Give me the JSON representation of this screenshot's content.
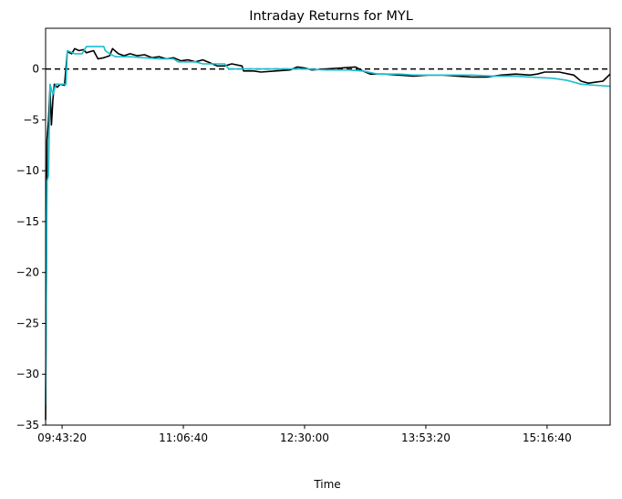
{
  "chart_data": {
    "type": "line",
    "title": "Intraday Returns for MYL",
    "xlabel": "Time",
    "ylabel": "",
    "x_time_range": [
      "09:32:00",
      "16:00:00"
    ],
    "ylim": [
      -35,
      4
    ],
    "x_ticks": [
      {
        "time": "09:43:20",
        "label": "09:43:20"
      },
      {
        "time": "11:06:40",
        "label": "11:06:40"
      },
      {
        "time": "12:30:00",
        "label": "12:30:00"
      },
      {
        "time": "13:53:20",
        "label": "13:53:20"
      },
      {
        "time": "15:16:40",
        "label": "15:16:40"
      }
    ],
    "y_ticks": [
      {
        "value": 0,
        "label": "0"
      },
      {
        "value": -5,
        "label": "−5"
      },
      {
        "value": -10,
        "label": "−10"
      },
      {
        "value": -15,
        "label": "−15"
      },
      {
        "value": -20,
        "label": "−20"
      },
      {
        "value": -25,
        "label": "−25"
      },
      {
        "value": -30,
        "label": "−30"
      },
      {
        "value": -35,
        "label": "−35"
      }
    ],
    "grid": false,
    "reference_line": {
      "value": 0,
      "style": "dashed",
      "color": "#000000"
    },
    "series": [
      {
        "color": "#000000",
        "points": [
          [
            "09:32:00",
            -34.5
          ],
          [
            "09:33:00",
            -7.0
          ],
          [
            "09:34:00",
            -5.0
          ],
          [
            "09:35:00",
            -2.0
          ],
          [
            "09:36:00",
            -5.5
          ],
          [
            "09:37:00",
            -3.0
          ],
          [
            "09:38:00",
            -1.5
          ],
          [
            "09:40:00",
            -1.8
          ],
          [
            "09:42:00",
            -1.5
          ],
          [
            "09:45:00",
            -1.6
          ],
          [
            "09:47:00",
            1.7
          ],
          [
            "09:50:00",
            1.5
          ],
          [
            "09:52:00",
            2.0
          ],
          [
            "09:55:00",
            1.8
          ],
          [
            "09:58:00",
            1.9
          ],
          [
            "10:00:00",
            1.6
          ],
          [
            "10:05:00",
            1.8
          ],
          [
            "10:08:00",
            1.0
          ],
          [
            "10:12:00",
            1.1
          ],
          [
            "10:16:00",
            1.3
          ],
          [
            "10:18:00",
            2.0
          ],
          [
            "10:22:00",
            1.5
          ],
          [
            "10:26:00",
            1.3
          ],
          [
            "10:30:00",
            1.5
          ],
          [
            "10:35:00",
            1.3
          ],
          [
            "10:40:00",
            1.4
          ],
          [
            "10:45:00",
            1.1
          ],
          [
            "10:50:00",
            1.2
          ],
          [
            "10:55:00",
            1.0
          ],
          [
            "11:00:00",
            1.1
          ],
          [
            "11:05:00",
            0.8
          ],
          [
            "11:10:00",
            0.9
          ],
          [
            "11:15:00",
            0.7
          ],
          [
            "11:20:00",
            0.9
          ],
          [
            "11:25:00",
            0.6
          ],
          [
            "11:30:00",
            0.3
          ],
          [
            "11:35:00",
            0.3
          ],
          [
            "11:40:00",
            0.5
          ],
          [
            "11:47:00",
            0.3
          ],
          [
            "11:48:00",
            -0.2
          ],
          [
            "11:55:00",
            -0.2
          ],
          [
            "12:00:00",
            -0.3
          ],
          [
            "12:10:00",
            -0.2
          ],
          [
            "12:20:00",
            -0.1
          ],
          [
            "12:25:00",
            0.2
          ],
          [
            "12:30:00",
            0.1
          ],
          [
            "12:35:00",
            -0.1
          ],
          [
            "12:45:00",
            0.0
          ],
          [
            "12:55:00",
            0.1
          ],
          [
            "13:05:00",
            0.2
          ],
          [
            "13:10:00",
            -0.2
          ],
          [
            "13:15:00",
            -0.5
          ],
          [
            "13:25:00",
            -0.5
          ],
          [
            "13:35:00",
            -0.6
          ],
          [
            "13:45:00",
            -0.7
          ],
          [
            "13:55:00",
            -0.6
          ],
          [
            "14:05:00",
            -0.6
          ],
          [
            "14:15:00",
            -0.7
          ],
          [
            "14:25:00",
            -0.8
          ],
          [
            "14:35:00",
            -0.8
          ],
          [
            "14:45:00",
            -0.6
          ],
          [
            "14:55:00",
            -0.5
          ],
          [
            "15:05:00",
            -0.6
          ],
          [
            "15:10:00",
            -0.5
          ],
          [
            "15:15:00",
            -0.3
          ],
          [
            "15:25:00",
            -0.3
          ],
          [
            "15:35:00",
            -0.6
          ],
          [
            "15:40:00",
            -1.2
          ],
          [
            "15:45:00",
            -1.4
          ],
          [
            "15:50:00",
            -1.3
          ],
          [
            "15:55:00",
            -1.2
          ],
          [
            "16:00:00",
            -0.5
          ]
        ]
      },
      {
        "color": "#17becf",
        "points": [
          [
            "09:32:00",
            -33.0
          ],
          [
            "09:33:00",
            -11.0
          ],
          [
            "09:34:00",
            -10.5
          ],
          [
            "09:35:00",
            -1.5
          ],
          [
            "09:37:00",
            -2.5
          ],
          [
            "09:39:00",
            -1.5
          ],
          [
            "09:46:00",
            -1.5
          ],
          [
            "09:47:00",
            1.8
          ],
          [
            "09:52:00",
            1.5
          ],
          [
            "09:57:00",
            1.5
          ],
          [
            "10:00:00",
            2.2
          ],
          [
            "10:12:00",
            2.2
          ],
          [
            "10:13:00",
            1.8
          ],
          [
            "10:16:00",
            1.5
          ],
          [
            "10:20:00",
            1.2
          ],
          [
            "10:30:00",
            1.2
          ],
          [
            "10:40:00",
            1.1
          ],
          [
            "10:50:00",
            1.0
          ],
          [
            "11:00:00",
            1.0
          ],
          [
            "11:03:00",
            0.7
          ],
          [
            "11:15:00",
            0.7
          ],
          [
            "11:20:00",
            0.5
          ],
          [
            "11:35:00",
            0.5
          ],
          [
            "11:38:00",
            0.0
          ],
          [
            "11:48:00",
            0.0
          ],
          [
            "12:30:00",
            0.0
          ],
          [
            "12:45:00",
            -0.1
          ],
          [
            "13:00:00",
            -0.1
          ],
          [
            "13:10:00",
            -0.2
          ],
          [
            "13:20:00",
            -0.5
          ],
          [
            "13:35:00",
            -0.5
          ],
          [
            "13:45:00",
            -0.6
          ],
          [
            "14:00:00",
            -0.6
          ],
          [
            "14:15:00",
            -0.6
          ],
          [
            "14:25:00",
            -0.6
          ],
          [
            "14:40:00",
            -0.7
          ],
          [
            "14:55:00",
            -0.7
          ],
          [
            "15:05:00",
            -0.8
          ],
          [
            "15:20:00",
            -0.9
          ],
          [
            "15:30:00",
            -1.1
          ],
          [
            "15:40:00",
            -1.5
          ],
          [
            "15:50:00",
            -1.6
          ],
          [
            "16:00:00",
            -1.7
          ]
        ]
      }
    ]
  }
}
